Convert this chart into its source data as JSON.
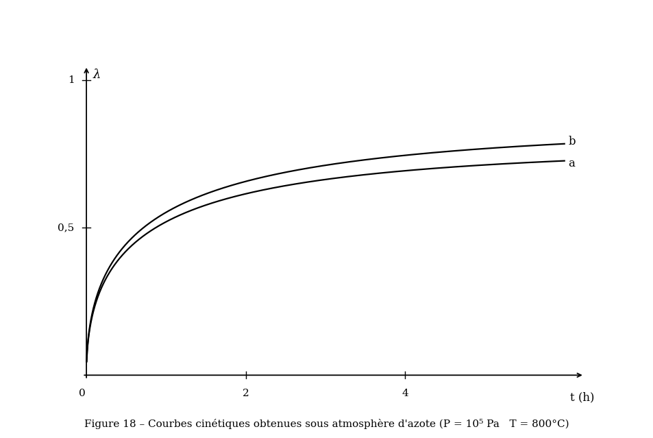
{
  "title": "Figure 18 – Courbes cinétiques obtenues sous atmosphère d'azote (P = 10⁵ Pa   T = 800°C)",
  "xlabel": "t (h)",
  "ylabel": "λ",
  "xlim_data": [
    0,
    6.0
  ],
  "ylim_data": [
    0,
    1.05
  ],
  "xticks": [
    2,
    4
  ],
  "yticks": [
    0.5,
    1.0
  ],
  "ytick_labels": [
    "0,5",
    "1"
  ],
  "xtick_labels": [
    "2",
    "4"
  ],
  "A_a": 0.78,
  "B_a": 1.1,
  "A_b": 0.85,
  "B_b": 1.05,
  "label_a": "a",
  "label_b": "b",
  "line_color": "#000000",
  "background_color": "#ffffff",
  "font_size_title": 11,
  "font_size_labels": 12,
  "font_size_ticks": 11,
  "font_size_curve_labels": 12
}
